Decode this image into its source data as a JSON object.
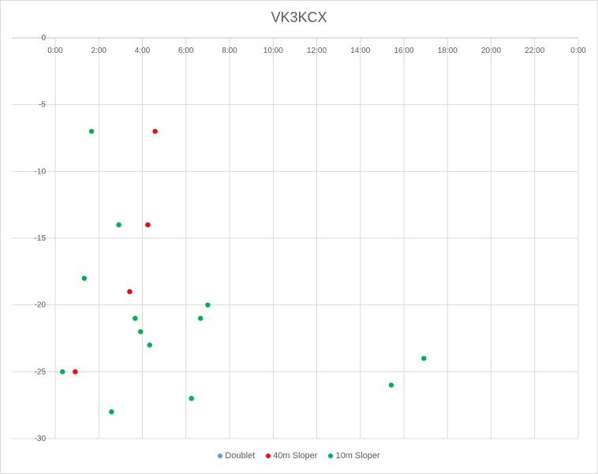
{
  "chart_data": {
    "type": "scatter",
    "title": "VK3KCX",
    "x_axis": {
      "type": "time",
      "min": "0:00",
      "max": "24:00",
      "major_unit_hours": 2,
      "tick_labels": [
        "0:00",
        "2:00",
        "4:00",
        "6:00",
        "8:00",
        "10:00",
        "12:00",
        "14:00",
        "16:00",
        "18:00",
        "20:00",
        "22:00",
        "0:00"
      ]
    },
    "y_axis": {
      "min": -30,
      "max": 0,
      "major_unit": 5,
      "tick_labels": [
        "0",
        "-5",
        "-10",
        "-15",
        "-20",
        "-25",
        "-30"
      ]
    },
    "grid": true,
    "legend_position": "bottom",
    "series": [
      {
        "name": "Doublet",
        "color": "#5b9bd5",
        "points": []
      },
      {
        "name": "40m Sloper",
        "color": "#ff0000",
        "points": [
          {
            "x": "0:55",
            "y": -25
          },
          {
            "x": "3:25",
            "y": -19
          },
          {
            "x": "4:15",
            "y": -14
          },
          {
            "x": "4:35",
            "y": -7
          }
        ]
      },
      {
        "name": "10m Sloper",
        "color": "#00b050",
        "points": [
          {
            "x": "0:20",
            "y": -25
          },
          {
            "x": "1:20",
            "y": -18
          },
          {
            "x": "1:40",
            "y": -7
          },
          {
            "x": "2:35",
            "y": -28
          },
          {
            "x": "2:55",
            "y": -14
          },
          {
            "x": "3:40",
            "y": -21
          },
          {
            "x": "3:55",
            "y": -22
          },
          {
            "x": "4:20",
            "y": -23
          },
          {
            "x": "6:15",
            "y": -27
          },
          {
            "x": "6:40",
            "y": -21
          },
          {
            "x": "7:00",
            "y": -20
          },
          {
            "x": "15:25",
            "y": -26
          },
          {
            "x": "16:55",
            "y": -24
          }
        ]
      }
    ]
  }
}
